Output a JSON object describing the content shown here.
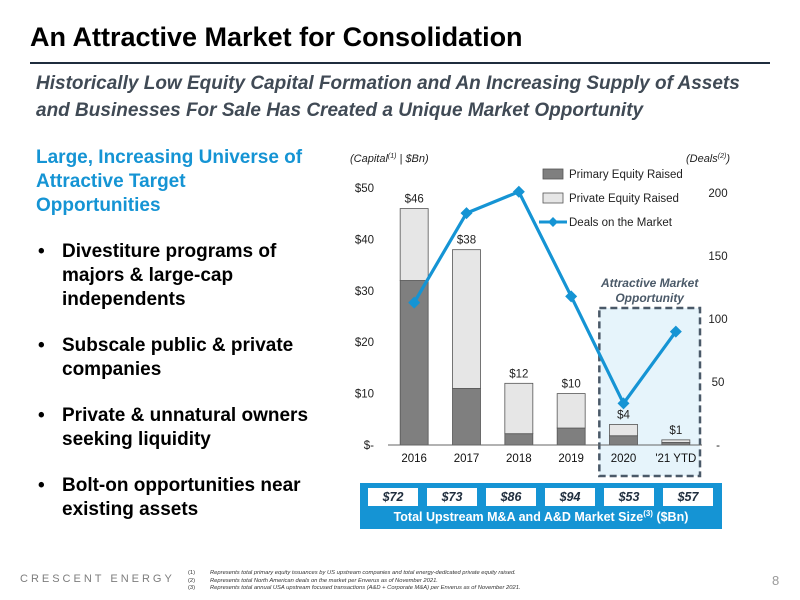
{
  "header": {
    "title": "An Attractive Market for Consolidation",
    "subtitle": "Historically Low Equity Capital Formation and An Increasing Supply of Assets and Businesses For Sale Has Created a Unique Market Opportunity"
  },
  "left_panel": {
    "heading": "Large, Increasing Universe of Attractive Target Opportunities",
    "bullets": [
      "Divestiture programs of majors & large-cap independents",
      "Subscale public & private companies",
      "Private & unnatural owners seeking liquidity",
      "Bolt-on opportunities near existing assets"
    ]
  },
  "chart_data": {
    "type": "bar",
    "categories": [
      "2016",
      "2017",
      "2018",
      "2019",
      "2020",
      "'21 YTD"
    ],
    "series": [
      {
        "name": "Primary Equity Raised",
        "type": "bar",
        "stack": "capital",
        "axis": "left",
        "values": [
          32,
          11,
          2.2,
          3.3,
          1.8,
          0.5
        ],
        "color": "#7f7f7f"
      },
      {
        "name": "Private Equity Raised",
        "type": "bar",
        "stack": "capital",
        "axis": "left",
        "values": [
          14,
          27,
          9.8,
          6.7,
          2.2,
          0.5
        ],
        "color": "#e6e6e6"
      },
      {
        "name": "Deals on the Market",
        "type": "line",
        "axis": "right",
        "values": [
          113,
          184,
          201,
          118,
          33,
          90
        ],
        "color": "#1594d4"
      }
    ],
    "bar_totals": [
      "$46",
      "$38",
      "$12",
      "$10",
      "$4",
      "$1"
    ],
    "left_axis": {
      "label_prefix": "(Capital",
      "label_sup": "(1)",
      "label_suffix": " | $Bn)",
      "ylim": [
        0,
        50
      ],
      "ticks": [
        "$-",
        "$10",
        "$20",
        "$30",
        "$40",
        "$50"
      ]
    },
    "right_axis": {
      "label_prefix": "(Deals",
      "label_sup": "(2)",
      "label_suffix": ")",
      "ylim": [
        0,
        200
      ],
      "ticks": [
        "-",
        "50",
        "100",
        "150",
        "200"
      ]
    },
    "legend_position": "top-right",
    "annotation": {
      "text_line1": "Attractive Market",
      "text_line2": "Opportunity",
      "covers": [
        "2020",
        "'21 YTD"
      ]
    },
    "grid": false
  },
  "market_size": {
    "values": [
      "$72",
      "$73",
      "$86",
      "$94",
      "$53",
      "$57"
    ],
    "label": "Total Upstream M&A and A&D Market Size",
    "label_sup": "(3)",
    "label_suffix": " ($Bn)"
  },
  "footer": {
    "brand": "CRESCENT ENERGY",
    "page_number": "8",
    "notes": [
      {
        "num": "(1)",
        "text": "Represents total primary equity issuances by US upstream companies and total energy-dedicated private equity raised."
      },
      {
        "num": "(2)",
        "text": "Represents total North American deals on the market per Enverus as of November 2021."
      },
      {
        "num": "(3)",
        "text": "Represents total annual USA upstream focused transactions (A&D + Corporate M&A) per Enverus as of November 2021."
      }
    ]
  },
  "colors": {
    "accent": "#1594d4",
    "annotation_fill": "#e6f4fb",
    "annotation_border": "#4a5968"
  }
}
